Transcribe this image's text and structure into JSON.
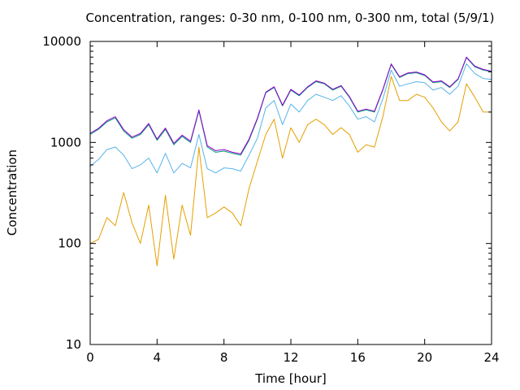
{
  "chart_data": {
    "type": "line",
    "title": "Concentration, ranges: 0-30 nm, 0-100 nm, 0-300 nm, total (5/9/1)",
    "xlabel": "Time [hour]",
    "ylabel": "Concentration",
    "xlim": [
      0,
      24
    ],
    "ylim": [
      10,
      10000
    ],
    "yscale": "log",
    "grid": false,
    "legend": "none",
    "x_ticks": [
      "0",
      "4",
      "8",
      "12",
      "16",
      "20",
      "24"
    ],
    "y_ticks": [
      "10",
      "100",
      "1000",
      "10000"
    ],
    "x": [
      0,
      0.5,
      1,
      1.5,
      2,
      2.5,
      3,
      3.5,
      4,
      4.5,
      5,
      5.5,
      6,
      6.5,
      7,
      7.5,
      8,
      8.5,
      9,
      9.5,
      10,
      10.5,
      11,
      11.5,
      12,
      12.5,
      13,
      13.5,
      14,
      14.5,
      15,
      15.5,
      16,
      16.5,
      17,
      17.5,
      18,
      18.5,
      19,
      19.5,
      20,
      20.5,
      21,
      21.5,
      22,
      22.5,
      23,
      23.5,
      24
    ],
    "series": [
      {
        "color": "#e69f00",
        "values": [
          100,
          110,
          180,
          150,
          320,
          160,
          100,
          240,
          60,
          300,
          70,
          240,
          120,
          900,
          180,
          200,
          230,
          200,
          150,
          350,
          650,
          1200,
          1700,
          700,
          1400,
          1000,
          1500,
          1700,
          1500,
          1200,
          1400,
          1200,
          800,
          950,
          900,
          1800,
          4500,
          2600,
          2600,
          3000,
          2800,
          2200,
          1600,
          1300,
          1600,
          3800,
          2800,
          2000,
          2000
        ]
      },
      {
        "color": "#56b4e9",
        "values": [
          580,
          680,
          850,
          900,
          750,
          550,
          600,
          700,
          500,
          780,
          500,
          620,
          560,
          1200,
          550,
          500,
          560,
          550,
          520,
          750,
          1100,
          2200,
          2600,
          1500,
          2400,
          2000,
          2600,
          3000,
          2800,
          2600,
          2900,
          2300,
          1700,
          1800,
          1600,
          2700,
          5200,
          3600,
          3800,
          4000,
          3900,
          3300,
          3500,
          3000,
          3600,
          6000,
          4800,
          4300,
          4200
        ]
      },
      {
        "color": "#009e73",
        "values": [
          1200,
          1350,
          1600,
          1750,
          1300,
          1100,
          1200,
          1500,
          1050,
          1350,
          950,
          1150,
          1000,
          2050,
          900,
          800,
          820,
          780,
          750,
          1050,
          1700,
          3100,
          3500,
          2300,
          3300,
          2900,
          3500,
          4000,
          3800,
          3300,
          3600,
          2800,
          2000,
          2100,
          2000,
          3300,
          5900,
          4400,
          4800,
          4900,
          4600,
          3900,
          4000,
          3500,
          4200,
          6900,
          5600,
          5200,
          5000
        ]
      },
      {
        "color": "#9400d3",
        "values": [
          1230,
          1380,
          1640,
          1800,
          1340,
          1130,
          1230,
          1540,
          1080,
          1390,
          980,
          1180,
          1030,
          2100,
          930,
          830,
          850,
          800,
          770,
          1080,
          1740,
          3150,
          3560,
          2340,
          3360,
          2950,
          3560,
          4070,
          3860,
          3360,
          3660,
          2850,
          2040,
          2140,
          2040,
          3360,
          6000,
          4470,
          4880,
          4980,
          4680,
          3970,
          4070,
          3560,
          4270,
          7000,
          5690,
          5290,
          5080
        ]
      }
    ]
  }
}
